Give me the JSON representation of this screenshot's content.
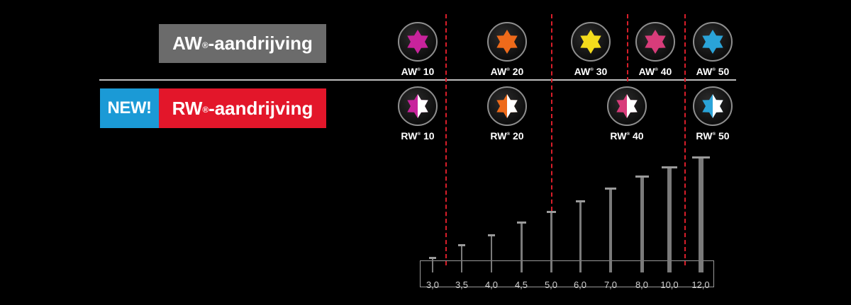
{
  "aw_label": {
    "prefix": "AW",
    "suffix": "-aandrijving"
  },
  "rw_label": {
    "prefix": "RW",
    "suffix": "-aandrijving"
  },
  "new_badge": "NEW!",
  "registered": "®",
  "aw_bits": [
    {
      "name": "AW",
      "size": "10",
      "color": "#c8239c"
    },
    {
      "name": "AW",
      "size": "20",
      "color": "#ee6a1a"
    },
    {
      "name": "AW",
      "size": "30",
      "color": "#f4dc1c"
    },
    {
      "name": "AW",
      "size": "40",
      "color": "#d83c7a"
    },
    {
      "name": "AW",
      "size": "50",
      "color": "#2aa3d8"
    }
  ],
  "rw_bits": [
    {
      "name": "RW",
      "size": "10",
      "color": "#c8239c"
    },
    {
      "name": "RW",
      "size": "20",
      "color": "#ee6a1a"
    },
    {
      "name": "RW",
      "size": "40",
      "color": "#d83c7a"
    },
    {
      "name": "RW",
      "size": "50",
      "color": "#2aa3d8"
    }
  ],
  "diameters": [
    "3,0",
    "3,5",
    "4,0",
    "4,5",
    "5,0",
    "6,0",
    "7,0",
    "8,0",
    "10,0",
    "12,0"
  ],
  "colors": {
    "separator": "#d81e2a",
    "new_badge": "#1b9ad6",
    "rw_bg": "#e3162a",
    "aw_bg": "#6b6b6b"
  }
}
